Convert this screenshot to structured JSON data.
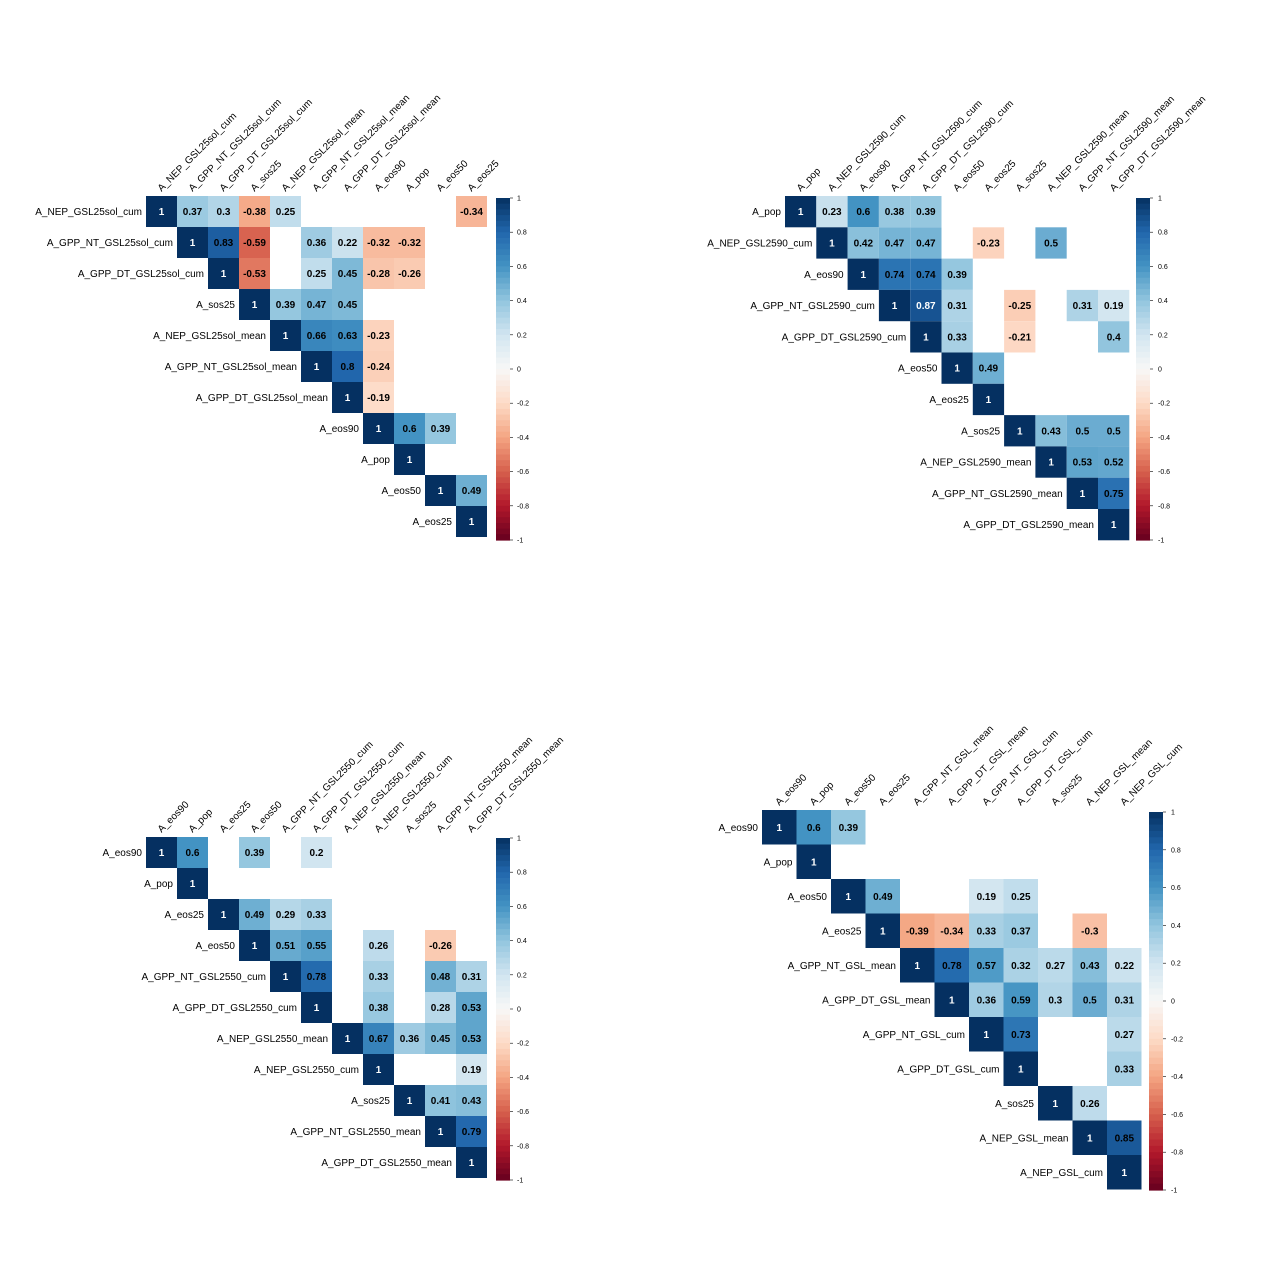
{
  "chart_data": [
    {
      "type": "heatmap",
      "shape": "upper-triangle correlation matrix",
      "variables": [
        "A_NEP_GSL25sol_cum",
        "A_GPP_NT_GSL25sol_cum",
        "A_GPP_DT_GSL25sol_cum",
        "A_sos25",
        "A_NEP_GSL25sol_mean",
        "A_GPP_NT_GSL25sol_mean",
        "A_GPP_DT_GSL25sol_mean",
        "A_eos90",
        "A_pop",
        "A_eos50",
        "A_eos25"
      ],
      "cells": [
        [
          0,
          0,
          1
        ],
        [
          0,
          1,
          0.37
        ],
        [
          0,
          2,
          0.3
        ],
        [
          0,
          3,
          -0.38
        ],
        [
          0,
          4,
          0.25
        ],
        [
          0,
          10,
          -0.34
        ],
        [
          1,
          1,
          1
        ],
        [
          1,
          2,
          0.83
        ],
        [
          1,
          3,
          -0.59
        ],
        [
          1,
          5,
          0.36
        ],
        [
          1,
          6,
          0.22
        ],
        [
          1,
          7,
          -0.32
        ],
        [
          1,
          8,
          -0.32
        ],
        [
          2,
          2,
          1
        ],
        [
          2,
          3,
          -0.53
        ],
        [
          2,
          5,
          0.25
        ],
        [
          2,
          6,
          0.45
        ],
        [
          2,
          7,
          -0.28
        ],
        [
          2,
          8,
          -0.26
        ],
        [
          3,
          3,
          1
        ],
        [
          3,
          4,
          0.39
        ],
        [
          3,
          5,
          0.47
        ],
        [
          3,
          6,
          0.45
        ],
        [
          4,
          4,
          1
        ],
        [
          4,
          5,
          0.66
        ],
        [
          4,
          6,
          0.63
        ],
        [
          4,
          7,
          -0.23
        ],
        [
          5,
          5,
          1
        ],
        [
          5,
          6,
          0.8
        ],
        [
          5,
          7,
          -0.24
        ],
        [
          6,
          6,
          1
        ],
        [
          6,
          7,
          -0.19
        ],
        [
          7,
          7,
          1
        ],
        [
          7,
          8,
          0.6
        ],
        [
          7,
          9,
          0.39
        ],
        [
          8,
          8,
          1
        ],
        [
          9,
          9,
          1
        ],
        [
          9,
          10,
          0.49
        ],
        [
          10,
          10,
          1
        ]
      ],
      "colorbar": {
        "range": [
          -1,
          1
        ],
        "ticks": [
          "1",
          "0.8",
          "0.6",
          "0.4",
          "0.2",
          "0",
          "-0.2",
          "-0.4",
          "-0.6",
          "-0.8",
          "-1"
        ]
      }
    },
    {
      "type": "heatmap",
      "shape": "upper-triangle correlation matrix",
      "variables": [
        "A_pop",
        "A_NEP_GSL2590_cum",
        "A_eos90",
        "A_GPP_NT_GSL2590_cum",
        "A_GPP_DT_GSL2590_cum",
        "A_eos50",
        "A_eos25",
        "A_sos25",
        "A_NEP_GSL2590_mean",
        "A_GPP_NT_GSL2590_mean",
        "A_GPP_DT_GSL2590_mean"
      ],
      "cells": [
        [
          0,
          0,
          1
        ],
        [
          0,
          1,
          0.23
        ],
        [
          0,
          2,
          0.6
        ],
        [
          0,
          3,
          0.38
        ],
        [
          0,
          4,
          0.39
        ],
        [
          1,
          1,
          1
        ],
        [
          1,
          2,
          0.42
        ],
        [
          1,
          3,
          0.47
        ],
        [
          1,
          4,
          0.47
        ],
        [
          1,
          6,
          -0.23
        ],
        [
          1,
          8,
          0.5
        ],
        [
          2,
          2,
          1
        ],
        [
          2,
          3,
          0.74
        ],
        [
          2,
          4,
          0.74
        ],
        [
          2,
          5,
          0.39
        ],
        [
          3,
          3,
          1
        ],
        [
          3,
          4,
          0.87
        ],
        [
          3,
          5,
          0.31
        ],
        [
          3,
          7,
          -0.25
        ],
        [
          3,
          9,
          0.31
        ],
        [
          3,
          10,
          0.19
        ],
        [
          4,
          4,
          1
        ],
        [
          4,
          5,
          0.33
        ],
        [
          4,
          7,
          -0.21
        ],
        [
          4,
          10,
          0.4
        ],
        [
          5,
          5,
          1
        ],
        [
          5,
          6,
          0.49
        ],
        [
          6,
          6,
          1
        ],
        [
          7,
          7,
          1
        ],
        [
          7,
          8,
          0.43
        ],
        [
          7,
          9,
          0.5
        ],
        [
          7,
          10,
          0.5
        ],
        [
          8,
          8,
          1
        ],
        [
          8,
          9,
          0.53
        ],
        [
          8,
          10,
          0.52
        ],
        [
          9,
          9,
          1
        ],
        [
          9,
          10,
          0.75
        ],
        [
          10,
          10,
          1
        ]
      ],
      "colorbar": {
        "range": [
          -1,
          1
        ],
        "ticks": [
          "1",
          "0.8",
          "0.6",
          "0.4",
          "0.2",
          "0",
          "-0.2",
          "-0.4",
          "-0.6",
          "-0.8",
          "-1"
        ]
      }
    },
    {
      "type": "heatmap",
      "shape": "upper-triangle correlation matrix",
      "variables": [
        "A_eos90",
        "A_pop",
        "A_eos25",
        "A_eos50",
        "A_GPP_NT_GSL2550_cum",
        "A_GPP_DT_GSL2550_cum",
        "A_NEP_GSL2550_mean",
        "A_NEP_GSL2550_cum",
        "A_sos25",
        "A_GPP_NT_GSL2550_mean",
        "A_GPP_DT_GSL2550_mean"
      ],
      "cells": [
        [
          0,
          0,
          1
        ],
        [
          0,
          1,
          0.6
        ],
        [
          0,
          3,
          0.39
        ],
        [
          0,
          5,
          0.2
        ],
        [
          1,
          1,
          1
        ],
        [
          2,
          2,
          1
        ],
        [
          2,
          3,
          0.49
        ],
        [
          2,
          4,
          0.29
        ],
        [
          2,
          5,
          0.33
        ],
        [
          3,
          3,
          1
        ],
        [
          3,
          4,
          0.51
        ],
        [
          3,
          5,
          0.55
        ],
        [
          3,
          7,
          0.26
        ],
        [
          3,
          9,
          -0.26
        ],
        [
          4,
          4,
          1
        ],
        [
          4,
          5,
          0.78
        ],
        [
          4,
          7,
          0.33
        ],
        [
          4,
          9,
          0.48
        ],
        [
          4,
          10,
          0.31
        ],
        [
          5,
          5,
          1
        ],
        [
          5,
          7,
          0.38
        ],
        [
          5,
          9,
          0.28
        ],
        [
          5,
          10,
          0.53
        ],
        [
          6,
          6,
          1
        ],
        [
          6,
          7,
          0.67
        ],
        [
          6,
          8,
          0.36
        ],
        [
          6,
          9,
          0.45
        ],
        [
          6,
          10,
          0.53
        ],
        [
          7,
          7,
          1
        ],
        [
          7,
          10,
          0.19
        ],
        [
          8,
          8,
          1
        ],
        [
          8,
          9,
          0.41
        ],
        [
          8,
          10,
          0.43
        ],
        [
          9,
          9,
          1
        ],
        [
          9,
          10,
          0.79
        ],
        [
          10,
          10,
          1
        ]
      ],
      "colorbar": {
        "range": [
          -1,
          1
        ],
        "ticks": [
          "1",
          "0.8",
          "0.6",
          "0.4",
          "0.2",
          "0",
          "-0.2",
          "-0.4",
          "-0.6",
          "-0.8",
          "-1"
        ]
      }
    },
    {
      "type": "heatmap",
      "shape": "upper-triangle correlation matrix",
      "variables": [
        "A_eos90",
        "A_pop",
        "A_eos50",
        "A_eos25",
        "A_GPP_NT_GSL_mean",
        "A_GPP_DT_GSL_mean",
        "A_GPP_NT_GSL_cum",
        "A_GPP_DT_GSL_cum",
        "A_sos25",
        "A_NEP_GSL_mean",
        "A_NEP_GSL_cum"
      ],
      "cells": [
        [
          0,
          0,
          1
        ],
        [
          0,
          1,
          0.6
        ],
        [
          0,
          2,
          0.39
        ],
        [
          1,
          1,
          1
        ],
        [
          2,
          2,
          1
        ],
        [
          2,
          3,
          0.49
        ],
        [
          2,
          6,
          0.19
        ],
        [
          2,
          7,
          0.25
        ],
        [
          3,
          3,
          1
        ],
        [
          3,
          4,
          -0.39
        ],
        [
          3,
          5,
          -0.34
        ],
        [
          3,
          6,
          0.33
        ],
        [
          3,
          7,
          0.37
        ],
        [
          3,
          9,
          -0.3
        ],
        [
          4,
          4,
          1
        ],
        [
          4,
          5,
          0.78
        ],
        [
          4,
          6,
          0.57
        ],
        [
          4,
          7,
          0.32
        ],
        [
          4,
          8,
          0.27
        ],
        [
          4,
          9,
          0.43
        ],
        [
          4,
          10,
          0.22
        ],
        [
          5,
          5,
          1
        ],
        [
          5,
          6,
          0.36
        ],
        [
          5,
          7,
          0.59
        ],
        [
          5,
          8,
          0.3
        ],
        [
          5,
          9,
          0.5
        ],
        [
          5,
          10,
          0.31
        ],
        [
          6,
          6,
          1
        ],
        [
          6,
          7,
          0.73
        ],
        [
          6,
          10,
          0.27
        ],
        [
          7,
          7,
          1
        ],
        [
          7,
          10,
          0.33
        ],
        [
          8,
          8,
          1
        ],
        [
          8,
          9,
          0.26
        ],
        [
          9,
          9,
          1
        ],
        [
          9,
          10,
          0.85
        ],
        [
          10,
          10,
          1
        ]
      ],
      "colorbar": {
        "range": [
          -1,
          1
        ],
        "ticks": [
          "1",
          "0.8",
          "0.6",
          "0.4",
          "0.2",
          "0",
          "-0.2",
          "-0.4",
          "-0.6",
          "-0.8",
          "-1"
        ]
      }
    }
  ]
}
